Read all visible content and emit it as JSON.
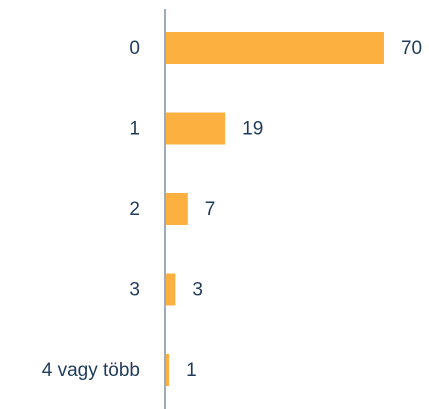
{
  "chart_data": {
    "type": "bar",
    "orientation": "horizontal",
    "categories": [
      "0",
      "1",
      "2",
      "3",
      "4 vagy több"
    ],
    "values": [
      70,
      19,
      7,
      3,
      1
    ],
    "color": "#fbb040"
  }
}
